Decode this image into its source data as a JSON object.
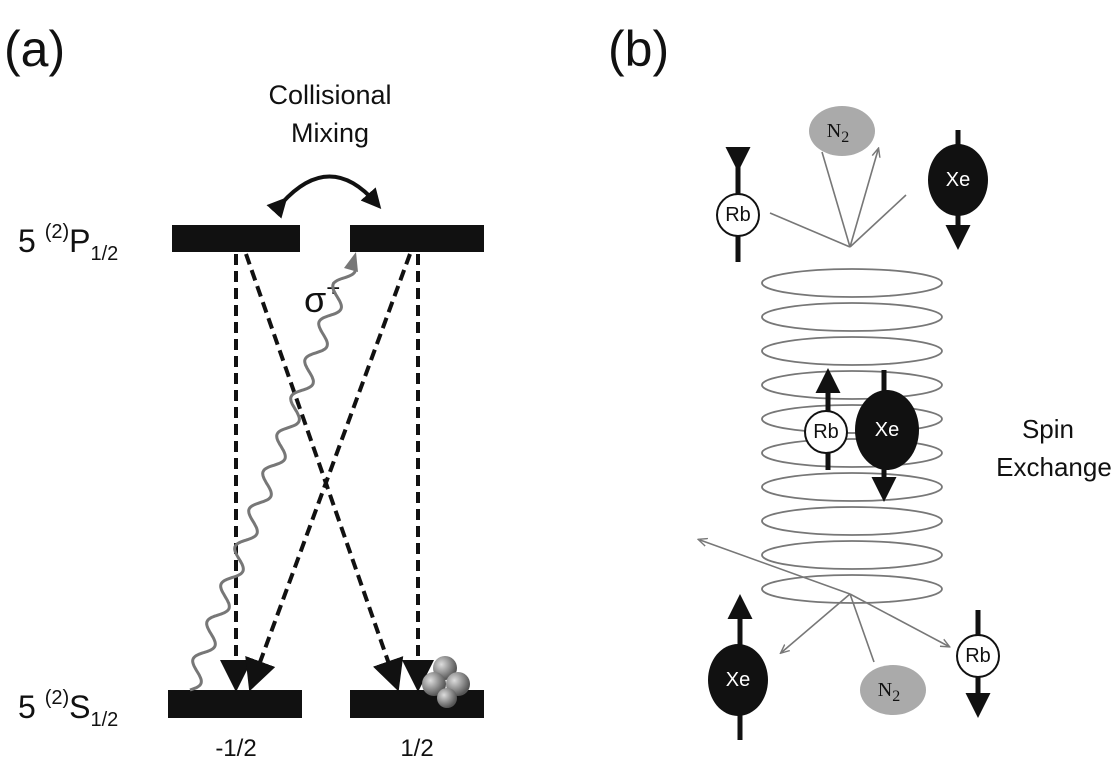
{
  "panel_a": {
    "label": "(a)",
    "collision": [
      "Collisional",
      "Mixing"
    ],
    "upper_level": {
      "prefix": "5 ",
      "sup": "(2)",
      "term": "P",
      "sub": "1/2"
    },
    "lower_level": {
      "prefix": "5 ",
      "sup": "(2)",
      "term": "S",
      "sub": "1/2"
    },
    "photon": {
      "symbol": "σ",
      "sup": "+"
    },
    "sublevels": [
      "-1/2",
      "1/2"
    ]
  },
  "panel_b": {
    "label": "(b)",
    "atoms": [
      "Rb",
      "Xe",
      "Rb",
      "Xe",
      "Xe",
      "Rb"
    ],
    "molecules": [
      {
        "symbol": "N",
        "sub": "2"
      },
      {
        "symbol": "N",
        "sub": "2"
      }
    ],
    "process": [
      "Spin",
      "Exchange"
    ]
  }
}
